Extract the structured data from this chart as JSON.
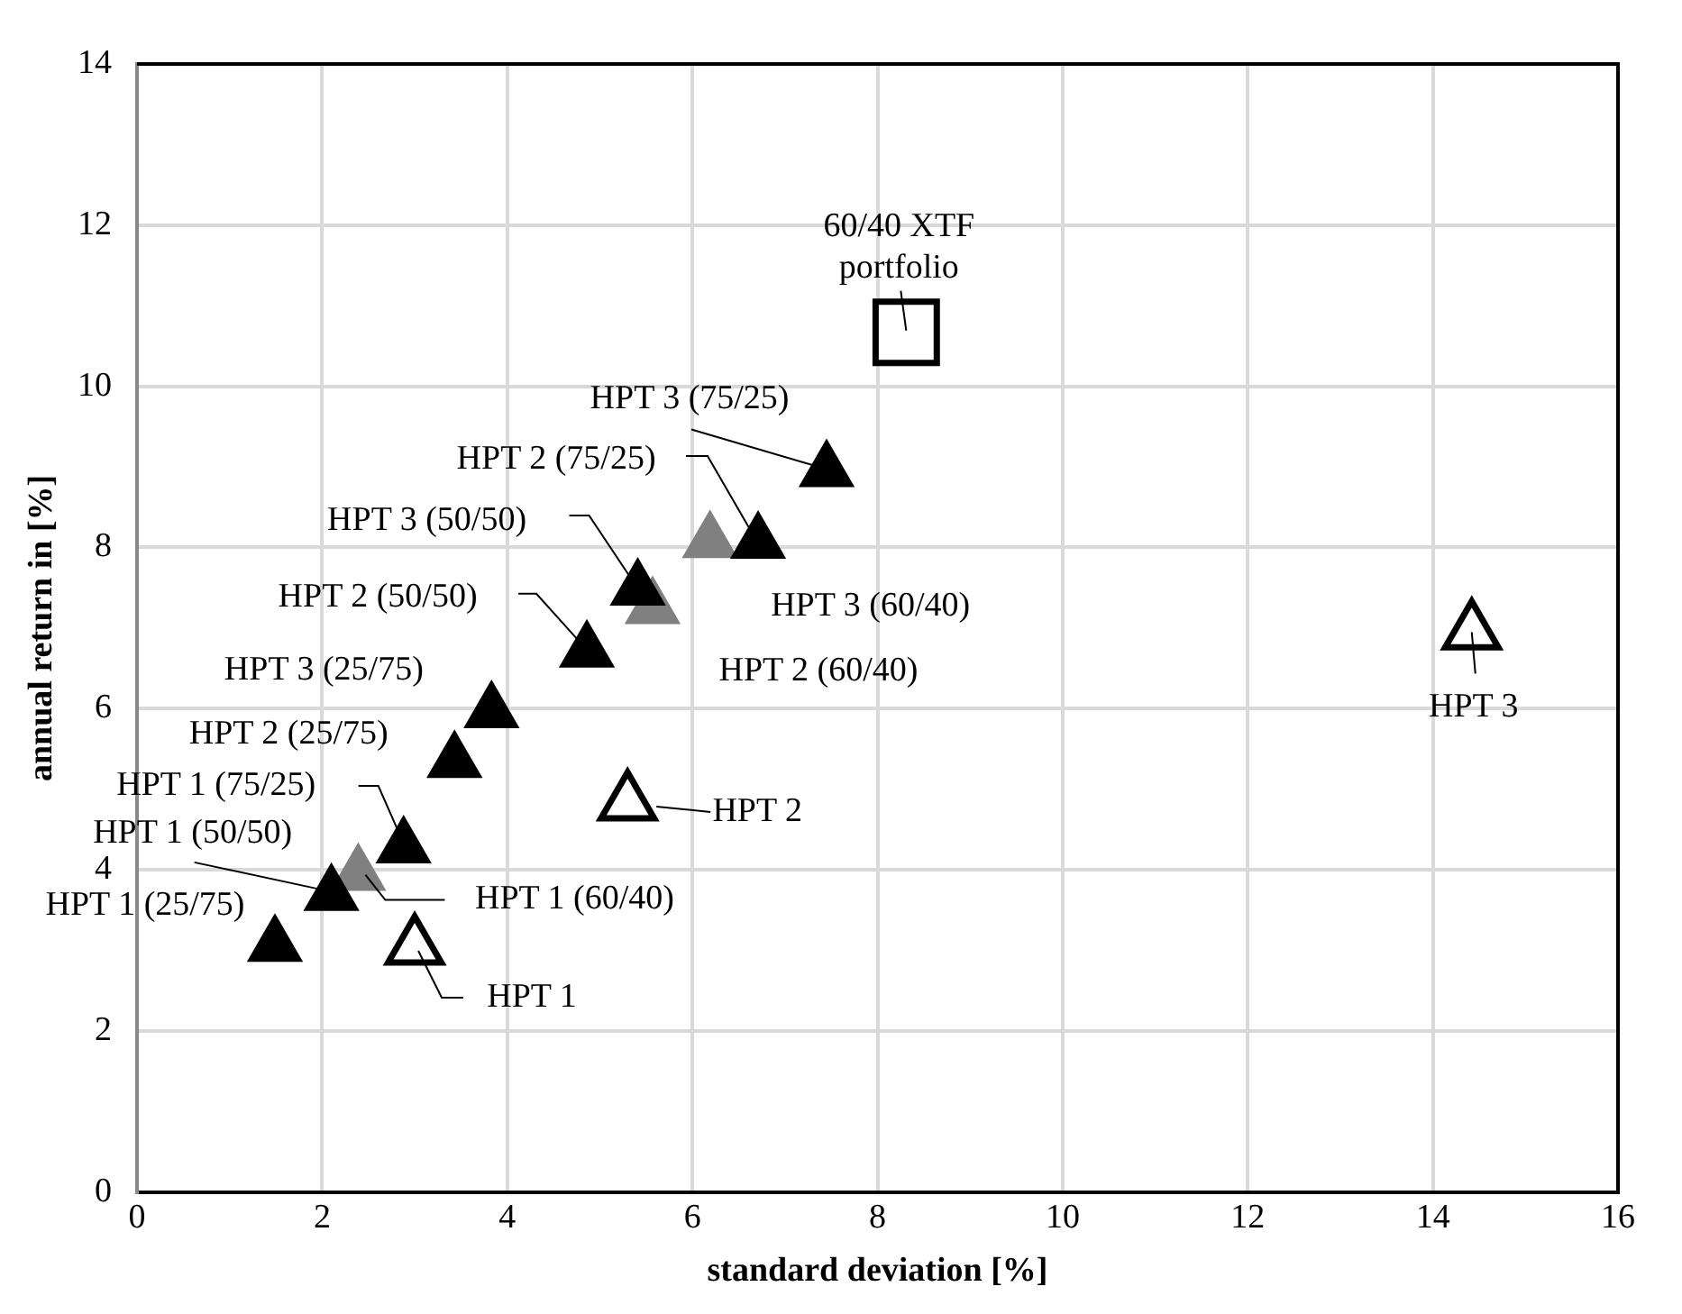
{
  "chart_data": {
    "type": "scatter",
    "xlabel": "standard deviation [%]",
    "ylabel": "annual return in [%]",
    "xlim": [
      0,
      16
    ],
    "xticks": [
      0,
      2,
      4,
      6,
      8,
      10,
      12,
      14,
      16
    ],
    "ylim": [
      0,
      14
    ],
    "yticks": [
      0,
      2,
      4,
      6,
      8,
      10,
      12,
      14
    ],
    "grid": true,
    "legend": false,
    "series": [
      {
        "color": "#000000",
        "marker": "triangle",
        "x": [
          1.49,
          2.1,
          2.88,
          3.43,
          3.83,
          4.86,
          5.41,
          6.71,
          7.45
        ],
        "values": [
          3.06,
          3.69,
          4.28,
          5.34,
          5.96,
          6.71,
          7.48,
          8.06,
          8.95
        ]
      },
      {
        "color": "#808080",
        "marker": "triangle",
        "x": [
          2.39,
          5.57,
          6.19
        ],
        "values": [
          3.94,
          7.25,
          8.07
        ]
      },
      {
        "color": "#000000",
        "marker": "triangle",
        "x": [
          3.0,
          5.3,
          14.42
        ],
        "values": [
          3.04,
          4.83,
          6.95
        ]
      },
      {
        "color": "#000000",
        "marker": "square",
        "x": [
          8.31
        ],
        "values": [
          10.67
        ]
      }
    ],
    "annotations": [
      {
        "text": "HPT 1 (25/75)",
        "x": 1.49,
        "y": 3.06
      },
      {
        "text": "HPT 1 (50/50)",
        "x": 2.1,
        "y": 3.69
      },
      {
        "text": "HPT 1 (60/40)",
        "x": 2.39,
        "y": 3.94
      },
      {
        "text": "HPT 1 (75/25)",
        "x": 2.88,
        "y": 4.28
      },
      {
        "text": "HPT 2 (25/75)",
        "x": 3.43,
        "y": 5.34
      },
      {
        "text": "HPT 3 (25/75)",
        "x": 3.83,
        "y": 5.96
      },
      {
        "text": "HPT 2 (50/50)",
        "x": 4.86,
        "y": 6.71
      },
      {
        "text": "HPT 3 (50/50)",
        "x": 5.41,
        "y": 7.48
      },
      {
        "text": "HPT 2 (60/40)",
        "x": 5.57,
        "y": 7.25
      },
      {
        "text": "HPT 3 (60/40)",
        "x": 6.19,
        "y": 8.07
      },
      {
        "text": "HPT 2 (75/25)",
        "x": 6.71,
        "y": 8.06
      },
      {
        "text": "HPT 3 (75/25)",
        "x": 7.45,
        "y": 8.95
      },
      {
        "text": "60/40 XTF\nportfolio",
        "x": 8.31,
        "y": 10.67
      },
      {
        "text": "HPT 1",
        "x": 3.0,
        "y": 3.04
      },
      {
        "text": "HPT 2",
        "x": 5.3,
        "y": 4.83
      },
      {
        "text": "HPT 3",
        "x": 14.42,
        "y": 6.95
      }
    ]
  }
}
